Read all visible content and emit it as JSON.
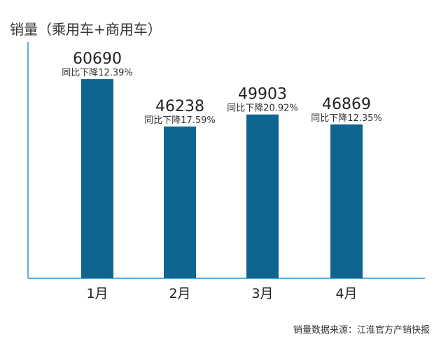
{
  "chart_data": {
    "type": "bar",
    "ylabel": "销量（乘用车+商用车）",
    "categories": [
      "1月",
      "2月",
      "3月",
      "4月"
    ],
    "values": [
      60690,
      46238,
      49903,
      46869
    ],
    "annotations": [
      "同比下降12.39%",
      "同比下降17.59%",
      "同比下降20.92%",
      "同比下降12.35%"
    ],
    "value_labels": [
      "60690",
      "46238",
      "49903",
      "46869"
    ],
    "source": "销量数据来源：江淮官方产销快报",
    "ylim": [
      0,
      72000
    ],
    "grid": false,
    "colors": {
      "bar": "#0e6690",
      "axis": "#5aaee0"
    }
  }
}
